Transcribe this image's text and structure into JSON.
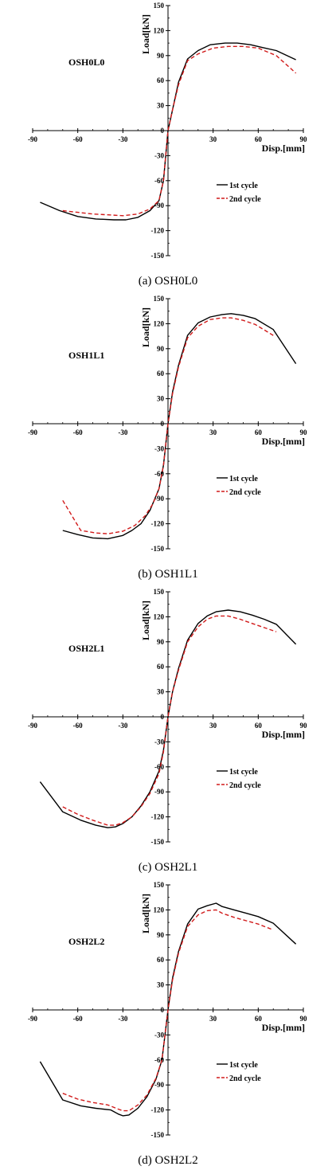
{
  "chart_data": [
    {
      "type": "line",
      "title": "OSH0L0",
      "caption": "(a) OSH0L0",
      "xlabel": "Disp.[mm]",
      "ylabel": "Load[kN]",
      "xlim": [
        -90,
        90
      ],
      "ylim": [
        -150,
        150
      ],
      "xticks": [
        -90,
        -60,
        -30,
        0,
        30,
        60,
        90
      ],
      "yticks": [
        -150,
        -120,
        -90,
        -60,
        -30,
        0,
        30,
        60,
        90,
        120,
        150
      ],
      "grid": false,
      "legend": "bottom-right",
      "series": [
        {
          "name": "1st cycle",
          "color": "#000000",
          "dash": "solid",
          "x": [
            -85,
            -72,
            -60,
            -48,
            -36,
            -28,
            -20,
            -12,
            -6,
            -3,
            0,
            3,
            7,
            13,
            20,
            28,
            38,
            46,
            55,
            62,
            72,
            85
          ],
          "y": [
            -86,
            -96,
            -103,
            -106,
            -107,
            -107,
            -104,
            -96,
            -84,
            -60,
            0,
            25,
            58,
            86,
            96,
            103,
            105,
            105,
            103,
            100,
            96,
            85
          ]
        },
        {
          "name": "2nd cycle",
          "color": "#d11a1a",
          "dash": "dashed",
          "x": [
            -70,
            -60,
            -50,
            -40,
            -30,
            -20,
            -12,
            -6,
            -3,
            0,
            3,
            7,
            13,
            20,
            30,
            40,
            50,
            60,
            72,
            85
          ],
          "y": [
            -96,
            -98,
            -100,
            -101,
            -102,
            -100,
            -94,
            -84,
            -60,
            0,
            25,
            55,
            84,
            92,
            99,
            101,
            101,
            99,
            90,
            69
          ]
        }
      ]
    },
    {
      "type": "line",
      "title": "OSH1L1",
      "caption": "(b) OSH1L1",
      "xlabel": "Disp.[mm]",
      "ylabel": "Load[kN]",
      "xlim": [
        -90,
        90
      ],
      "ylim": [
        -150,
        150
      ],
      "xticks": [
        -90,
        -60,
        -30,
        0,
        30,
        60,
        90
      ],
      "yticks": [
        -150,
        -120,
        -90,
        -60,
        -30,
        0,
        30,
        60,
        90,
        120,
        150
      ],
      "grid": false,
      "legend": "bottom-right",
      "series": [
        {
          "name": "1st cycle",
          "color": "#000000",
          "dash": "solid",
          "x": [
            -70,
            -60,
            -50,
            -40,
            -30,
            -24,
            -18,
            -12,
            -6,
            -3,
            0,
            3,
            7,
            13,
            20,
            28,
            36,
            42,
            50,
            58,
            70,
            85
          ],
          "y": [
            -128,
            -133,
            -137,
            -138,
            -134,
            -128,
            -120,
            -104,
            -78,
            -50,
            0,
            38,
            70,
            106,
            121,
            128,
            131,
            132,
            130,
            126,
            113,
            72
          ]
        },
        {
          "name": "2nd cycle",
          "color": "#d11a1a",
          "dash": "dashed",
          "x": [
            -70,
            -58,
            -48,
            -40,
            -30,
            -22,
            -15,
            -10,
            -6,
            -3,
            0,
            3,
            7,
            13,
            20,
            28,
            36,
            42,
            50,
            58,
            70
          ],
          "y": [
            -92,
            -128,
            -131,
            -132,
            -129,
            -122,
            -110,
            -96,
            -78,
            -50,
            0,
            36,
            68,
            103,
            117,
            125,
            127,
            127,
            124,
            119,
            106
          ]
        }
      ]
    },
    {
      "type": "line",
      "title": "OSH2L1",
      "caption": "(c) OSH2L1",
      "xlabel": "Disp.[mm]",
      "ylabel": "Load[kN]",
      "xlim": [
        -90,
        90
      ],
      "ylim": [
        -150,
        150
      ],
      "xticks": [
        -90,
        -60,
        -30,
        0,
        30,
        60,
        90
      ],
      "yticks": [
        -150,
        -120,
        -90,
        -60,
        -30,
        0,
        30,
        60,
        90,
        120,
        150
      ],
      "grid": false,
      "legend": "bottom-right",
      "series": [
        {
          "name": "1st cycle",
          "color": "#000000",
          "dash": "solid",
          "x": [
            -85,
            -80,
            -70,
            -58,
            -48,
            -40,
            -35,
            -30,
            -24,
            -18,
            -12,
            -6,
            -3,
            0,
            3,
            7,
            13,
            20,
            26,
            32,
            40,
            48,
            56,
            64,
            72,
            85
          ],
          "y": [
            -78,
            -90,
            -114,
            -124,
            -130,
            -133,
            -132,
            -128,
            -120,
            -107,
            -90,
            -65,
            -40,
            0,
            30,
            58,
            92,
            112,
            121,
            126,
            128,
            126,
            122,
            117,
            111,
            87
          ]
        },
        {
          "name": "2nd cycle",
          "color": "#d11a1a",
          "dash": "dashed",
          "x": [
            -70,
            -60,
            -50,
            -40,
            -35,
            -30,
            -24,
            -18,
            -12,
            -6,
            -3,
            0,
            3,
            7,
            13,
            20,
            26,
            32,
            40,
            48,
            56,
            64,
            72
          ],
          "y": [
            -108,
            -117,
            -124,
            -130,
            -130,
            -127,
            -120,
            -108,
            -92,
            -68,
            -42,
            0,
            30,
            56,
            90,
            108,
            117,
            121,
            121,
            117,
            112,
            107,
            102
          ]
        }
      ]
    },
    {
      "type": "line",
      "title": "OSH2L2",
      "caption": "(d) OSH2L2",
      "xlabel": "Disp.[mm]",
      "ylabel": "Load[kN]",
      "xlim": [
        -90,
        90
      ],
      "ylim": [
        -150,
        150
      ],
      "xticks": [
        -90,
        -60,
        -30,
        0,
        30,
        60,
        90
      ],
      "yticks": [
        -150,
        -120,
        -90,
        -60,
        -30,
        0,
        30,
        60,
        90,
        120,
        150
      ],
      "grid": false,
      "legend": "bottom-right",
      "series": [
        {
          "name": "1st cycle",
          "color": "#000000",
          "dash": "solid",
          "x": [
            -85,
            -70,
            -58,
            -48,
            -38,
            -33,
            -30,
            -26,
            -20,
            -14,
            -8,
            -4,
            0,
            3,
            7,
            13,
            20,
            26,
            32,
            36,
            44,
            52,
            60,
            70,
            85
          ],
          "y": [
            -62,
            -108,
            -115,
            -118,
            -120,
            -125,
            -127,
            -126,
            -118,
            -104,
            -83,
            -60,
            0,
            38,
            70,
            103,
            121,
            125,
            128,
            124,
            120,
            116,
            112,
            104,
            79
          ]
        },
        {
          "name": "2nd cycle",
          "color": "#d11a1a",
          "dash": "dashed",
          "x": [
            -70,
            -60,
            -50,
            -40,
            -33,
            -30,
            -26,
            -20,
            -14,
            -8,
            -4,
            0,
            3,
            7,
            13,
            20,
            26,
            32,
            36,
            44,
            52,
            60,
            70
          ],
          "y": [
            -100,
            -107,
            -111,
            -114,
            -119,
            -121,
            -121,
            -114,
            -102,
            -82,
            -60,
            0,
            36,
            68,
            100,
            114,
            119,
            120,
            116,
            111,
            107,
            103,
            96
          ]
        }
      ]
    }
  ]
}
